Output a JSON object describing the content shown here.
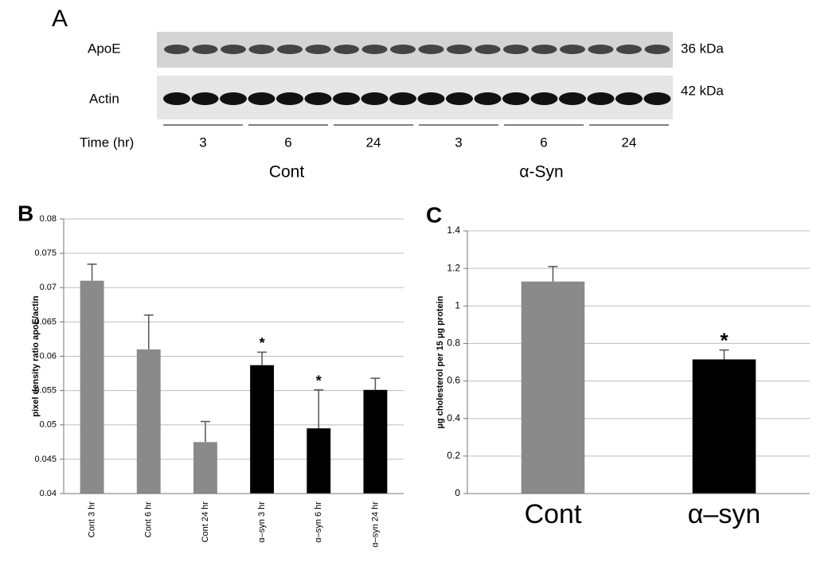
{
  "blot": {
    "panel": "A",
    "rows": [
      {
        "label": "ApoE",
        "size": "36 kDa"
      },
      {
        "label": "Actin",
        "size": "42 kDa"
      }
    ],
    "time_label": "Time (hr)",
    "times": [
      "3",
      "6",
      "24",
      "3",
      "6",
      "24"
    ],
    "groups": [
      "Cont",
      "α-Syn"
    ]
  },
  "chart_data": [
    {
      "type": "bar",
      "panel": "B",
      "ylabel": "pixel density ratio apoE/actin",
      "categories": [
        "Cont 3 hr",
        "Cont 6 hr",
        "Cont 24 hr",
        "α–syn 3 hr",
        "α–syn 6 hr",
        "α–syn 24 hr"
      ],
      "values": [
        0.071,
        0.061,
        0.0475,
        0.0587,
        0.0495,
        0.0551
      ],
      "errors": [
        0.0024,
        0.005,
        0.003,
        0.0019,
        0.0056,
        0.0017
      ],
      "colors": [
        "#8a8a8a",
        "#8a8a8a",
        "#8a8a8a",
        "#000000",
        "#000000",
        "#000000"
      ],
      "annotations": [
        {
          "text": "*",
          "x": "α–syn 3 hr"
        },
        {
          "text": "*",
          "x": "α–syn 6 hr"
        }
      ],
      "ylim": [
        0.04,
        0.08
      ],
      "yticks": [
        0.04,
        0.045,
        0.05,
        0.055,
        0.06,
        0.065,
        0.07,
        0.075,
        0.08
      ],
      "grid": true
    },
    {
      "type": "bar",
      "panel": "C",
      "ylabel": "µg cholesterol per 15 µg protein",
      "categories": [
        "Cont",
        "α–syn"
      ],
      "values": [
        1.13,
        0.715
      ],
      "errors": [
        0.08,
        0.05
      ],
      "colors": [
        "#8a8a8a",
        "#000000"
      ],
      "annotations": [
        {
          "text": "*",
          "x": "α–syn"
        }
      ],
      "ylim": [
        0,
        1.4
      ],
      "yticks": [
        0,
        0.2,
        0.4,
        0.6,
        0.8,
        1,
        1.2,
        1.4
      ],
      "grid": true
    }
  ]
}
